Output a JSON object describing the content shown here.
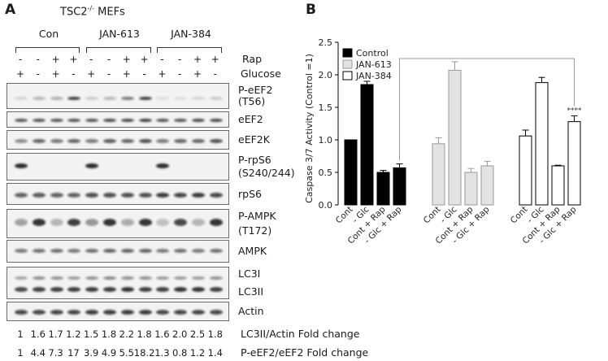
{
  "panel_a": {
    "letter": "A",
    "title": "TSC2",
    "title_sup": "-/-",
    "title_suffix": " MEFs",
    "groups": [
      "Con",
      "JAN-613",
      "JAN-384"
    ],
    "treatment_rows": [
      {
        "label": "Rap",
        "signs": [
          "-",
          "-",
          "+",
          "+",
          "-",
          "-",
          "+",
          "+",
          "-",
          "-",
          "+",
          "+"
        ]
      },
      {
        "label": "Glucose",
        "signs": [
          "+",
          "-",
          "+",
          "-",
          "+",
          "-",
          "+",
          "-",
          "+",
          "-",
          "+",
          "-"
        ]
      }
    ],
    "blots": [
      {
        "label": "P-eEF2",
        "label2": "(T56)"
      },
      {
        "label": "eEF2",
        "label2": ""
      },
      {
        "label": "eEF2K",
        "label2": ""
      },
      {
        "label": "P-rpS6",
        "label2": "(S240/244)"
      },
      {
        "label": "rpS6",
        "label2": ""
      },
      {
        "label": "P-AMPK",
        "label2": "(T172)"
      },
      {
        "label": "AMPK",
        "label2": ""
      },
      {
        "label": "LC3I",
        "label2": "LC3II"
      },
      {
        "label": "Actin",
        "label2": ""
      }
    ],
    "fold_rows": [
      {
        "values": [
          "1",
          "1.6",
          "1.7",
          "1.2",
          "1.5",
          "1.8",
          "2.2",
          "1.8",
          "1.6",
          "2.0",
          "2.5",
          "1.8"
        ],
        "label": "LC3II/Actin Fold change"
      },
      {
        "values": [
          "1",
          "4.4",
          "7.3",
          "17",
          "3.9",
          "4.9",
          "5.5",
          "18.2",
          "1.3",
          "0.8",
          "1.2",
          "1.4"
        ],
        "label": "P-eEF2/eEF2 Fold change"
      }
    ]
  },
  "panel_b": {
    "letter": "B",
    "significance": "****"
  },
  "chart_data": {
    "type": "bar",
    "ylabel": "Caspase 3/7 Activity (Control =1)",
    "ylim": [
      0,
      2.5
    ],
    "yticks": [
      "0.0",
      "0.5",
      "1.0",
      "1.5",
      "2.0",
      "2.5"
    ],
    "categories": [
      "Cont",
      "- Glc",
      "Cont + Rap",
      "- Glc + Rap"
    ],
    "legend_position": "top-left",
    "series": [
      {
        "name": "Control",
        "color": "#000000",
        "values": [
          1.0,
          1.85,
          0.5,
          0.57
        ],
        "errors": [
          0,
          0.05,
          0.03,
          0.06
        ]
      },
      {
        "name": "JAN-613",
        "color": "#e3e3e3",
        "values": [
          0.94,
          2.07,
          0.5,
          0.6
        ],
        "errors": [
          0.09,
          0.13,
          0.06,
          0.07
        ]
      },
      {
        "name": "JAN-384",
        "color": "#ffffff",
        "values": [
          1.06,
          1.88,
          0.6,
          1.28
        ],
        "errors": [
          0.09,
          0.08,
          0.01,
          0.09
        ]
      }
    ]
  }
}
